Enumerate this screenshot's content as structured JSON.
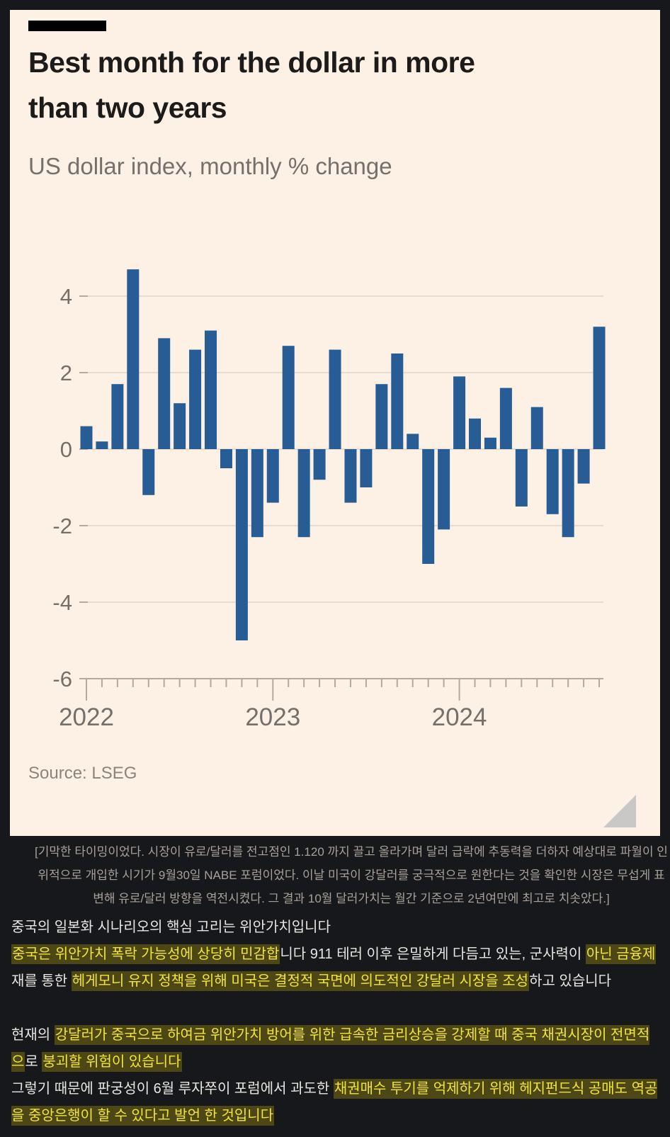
{
  "colors": {
    "page_bg": "#17181b",
    "card_bg": "#fdf0e4",
    "accent_bar": "#000000",
    "title": "#1d1b1a",
    "subtitle": "#75706b",
    "bar": "#275d94",
    "gridline": "#e7dbce",
    "axis": "#b3aa9f",
    "tick_label": "#756f69",
    "source": "#8b847c",
    "resize_handle": "#c9c8c6",
    "caption": "#a8a19a",
    "body_text": "#e8e6e2",
    "highlight_text": "#f1e43c",
    "highlight_bg": "#4d4716"
  },
  "chart_card": {
    "title": "Best month for the dollar in more than two years",
    "subtitle": "US dollar index, monthly % change",
    "source_label": "Source: LSEG"
  },
  "chart_data": {
    "type": "bar",
    "title": "Best month for the dollar in more than two years",
    "subtitle": "US dollar index, monthly % change",
    "source": "Source: LSEG",
    "unit": "%",
    "categories": [
      "2022-01",
      "2022-02",
      "2022-03",
      "2022-04",
      "2022-05",
      "2022-06",
      "2022-07",
      "2022-08",
      "2022-09",
      "2022-10",
      "2022-11",
      "2022-12",
      "2023-01",
      "2023-02",
      "2023-03",
      "2023-04",
      "2023-05",
      "2023-06",
      "2023-07",
      "2023-08",
      "2023-09",
      "2023-10",
      "2023-11",
      "2023-12",
      "2024-01",
      "2024-02",
      "2024-03",
      "2024-04",
      "2024-05",
      "2024-06",
      "2024-07",
      "2024-08",
      "2024-09",
      "2024-10"
    ],
    "values": [
      0.6,
      0.2,
      1.7,
      4.7,
      -1.2,
      2.9,
      1.2,
      2.6,
      3.1,
      -0.5,
      -5.0,
      -2.3,
      -1.4,
      2.7,
      -2.3,
      -0.8,
      2.6,
      -1.4,
      -1.0,
      1.7,
      2.5,
      0.4,
      -3.0,
      -2.1,
      1.9,
      0.8,
      0.3,
      1.6,
      -1.5,
      1.1,
      -1.7,
      -2.3,
      -0.9,
      3.2
    ],
    "ylim": [
      -6,
      5
    ],
    "yticks": [
      4,
      2,
      0,
      -2,
      -4,
      -6
    ],
    "year_labels": [
      "2022",
      "2023",
      "2024"
    ],
    "year_indices": [
      0,
      12,
      24
    ],
    "grid": true,
    "legend": null,
    "xlabel": "",
    "ylabel": ""
  },
  "caption": {
    "text": "[기막한 타이밍이었다. 시장이 유로/달러를 전고점인 1.120 까지 끌고 올라가며 달러 급락에 추동력을 더하자 예상대로 파월이 인위적으로 개입한 시기가 9월30일 NABE 포럼이었다. 이날 미국이 강달러를 궁극적으로 원한다는 것을 확인한 시장은 무섭게 표변해 유로/달러 방향을 역전시켰다. 그 결과 10월 달러가치는 월간 기준으로 2년여만에 최고로 치솟았다.]"
  },
  "body": {
    "blocks": [
      {
        "gap_before": false,
        "segments": [
          {
            "t": "중국의 일본화 시나리오의 핵심 고리는 위안가치입니다",
            "h": false
          }
        ]
      },
      {
        "gap_before": false,
        "segments": [
          {
            "t": "중국은 위안가치 폭락 가능성에 상당히 민감합",
            "h": true
          },
          {
            "t": "니다 911 테러 이후 은밀하게 다듬고 있는, 군사력이 ",
            "h": false
          },
          {
            "t": "아닌 금융제",
            "h": true
          },
          {
            "t": "재를 통한 ",
            "h": false
          },
          {
            "t": "헤게모니 유지 정책을 위해 미국은 결정적 국면에 의도적인 강달러 시장을 조성",
            "h": true
          },
          {
            "t": "하고 있습니다",
            "h": false
          }
        ]
      },
      {
        "gap_before": true,
        "segments": [
          {
            "t": "현재의 ",
            "h": false
          },
          {
            "t": "강달러가 중국으로 하여금 위안가치 방어를 위한 급속한 금리상승을 강제할 때 중국 채권시장이 전면적으",
            "h": true
          },
          {
            "t": "로 ",
            "h": false
          },
          {
            "t": "붕괴할 위험이 있습니다",
            "h": true
          }
        ]
      },
      {
        "gap_before": false,
        "segments": [
          {
            "t": "그렇기 때문에 판궁성이 6월 루자쭈이 포럼에서 과도한 ",
            "h": false
          },
          {
            "t": "채권매수 투기를 억제하기 위해 헤지펀드식 공매도 역공을 중앙은행이 할 수 있다고 발언 한 것입니다",
            "h": true
          }
        ]
      }
    ]
  }
}
